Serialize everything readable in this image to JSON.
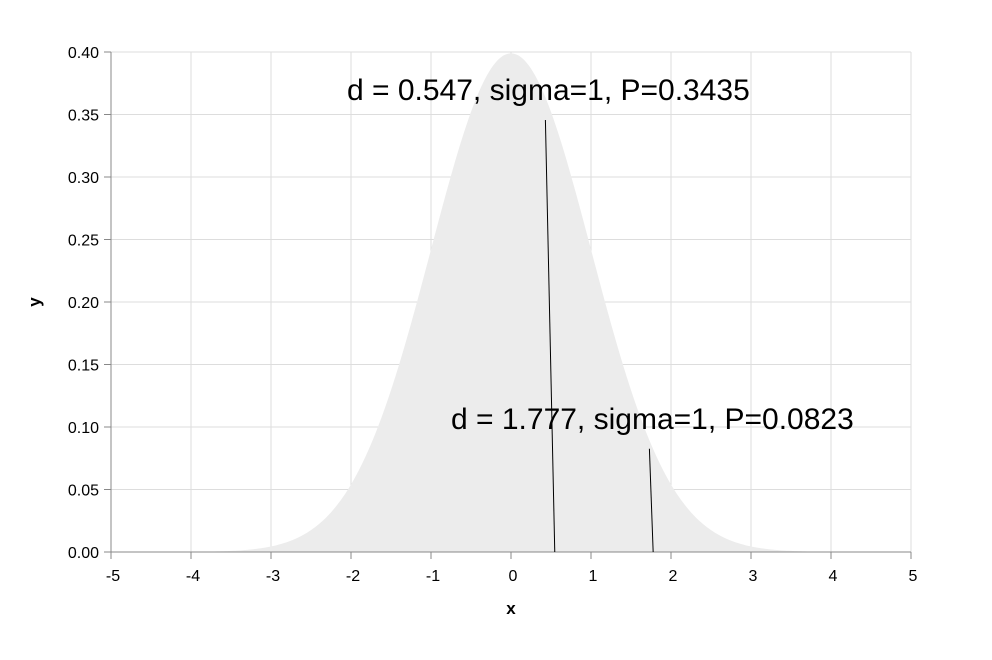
{
  "chart_data": {
    "type": "area",
    "title": "",
    "xlabel": "x",
    "ylabel": "y",
    "xlim": [
      -5,
      5
    ],
    "ylim": [
      0,
      0.4
    ],
    "x_ticks": [
      "-5",
      "-4",
      "-3",
      "-2",
      "-1",
      "0",
      "1",
      "2",
      "3",
      "4",
      "5"
    ],
    "y_ticks": [
      "0.00",
      "0.05",
      "0.10",
      "0.15",
      "0.20",
      "0.25",
      "0.30",
      "0.35",
      "0.40"
    ],
    "grid": true,
    "curve": {
      "distribution": "normal",
      "mean": 0,
      "sigma": 1,
      "fill_color": "#ececec"
    },
    "annotations": [
      {
        "label": "d = 0.547, sigma=1, P=0.3435",
        "line": {
          "x_bottom": 0.547,
          "y_bottom": 0,
          "x_top": 0.43,
          "y_top": 0.3456
        }
      },
      {
        "label": "d = 1.777, sigma=1, P=0.0823",
        "line": {
          "x_bottom": 1.777,
          "y_bottom": 0,
          "x_top": 1.73,
          "y_top": 0.0826
        }
      }
    ]
  }
}
